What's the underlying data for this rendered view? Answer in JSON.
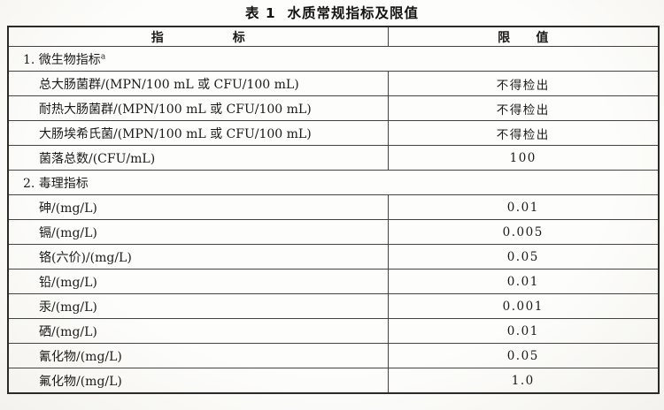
{
  "page": {
    "title": "表 1  水质常规指标及限值"
  },
  "colors": {
    "paper": "#fdfdfb",
    "ink": "#1b1a18",
    "grid_line": "#454340",
    "outer_border": "#2b2a27"
  },
  "table": {
    "header": {
      "indicator": "指                标",
      "limit": "限      值"
    },
    "rows": [
      {
        "type": "section",
        "label": "1. 微生物指标",
        "sup": "a"
      },
      {
        "type": "data",
        "label": "总大肠菌群/(MPN/100 mL 或 CFU/100 mL)",
        "value": "不得检出"
      },
      {
        "type": "data",
        "label": "耐热大肠菌群/(MPN/100 mL 或 CFU/100 mL)",
        "value": "不得检出"
      },
      {
        "type": "data",
        "label": "大肠埃希氏菌/(MPN/100 mL 或 CFU/100 mL)",
        "value": "不得检出"
      },
      {
        "type": "data",
        "label": "菌落总数/(CFU/mL)",
        "value": "100"
      },
      {
        "type": "section",
        "label": "2. 毒理指标"
      },
      {
        "type": "data",
        "label": "砷/(mg/L)",
        "value": "0.01"
      },
      {
        "type": "data",
        "label": "镉/(mg/L)",
        "value": "0.005"
      },
      {
        "type": "data",
        "label": "铬(六价)/(mg/L)",
        "value": "0.05"
      },
      {
        "type": "data",
        "label": "铅/(mg/L)",
        "value": "0.01"
      },
      {
        "type": "data",
        "label": "汞/(mg/L)",
        "value": "0.001"
      },
      {
        "type": "data",
        "label": "硒/(mg/L)",
        "value": "0.01"
      },
      {
        "type": "data",
        "label": "氰化物/(mg/L)",
        "value": "0.05"
      },
      {
        "type": "data",
        "label": "氟化物/(mg/L)",
        "value": "1.0"
      }
    ]
  }
}
